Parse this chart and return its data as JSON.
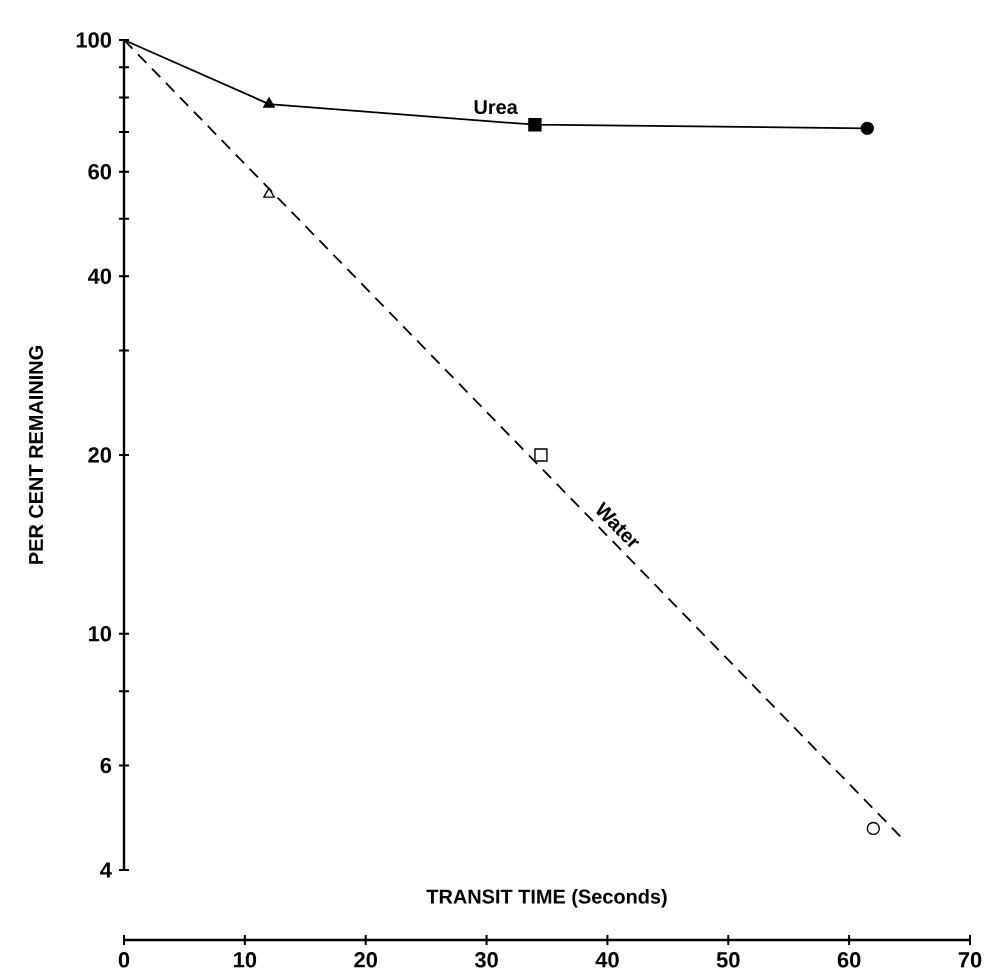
{
  "chart_data": {
    "type": "line",
    "xlabel": "TRANSIT TIME (Seconds)",
    "ylabel": "PER CENT REMAINING",
    "log": "y",
    "xlim": [
      0,
      70
    ],
    "xticks": [
      0,
      10,
      20,
      30,
      40,
      50,
      60,
      70
    ],
    "ylim": [
      4,
      100
    ],
    "yticks": [
      4,
      6,
      {
        "value": 8,
        "label": null
      },
      10,
      20,
      {
        "value": 30,
        "label": null
      },
      40,
      {
        "value": 50,
        "label": null
      },
      60,
      {
        "value": 70,
        "label": null
      },
      {
        "value": 80,
        "label": null
      },
      {
        "value": 90,
        "label": null
      },
      100
    ],
    "grid": false,
    "series": [
      {
        "name": "Urea",
        "color": "#000000",
        "line_style": "solid",
        "marker": "none",
        "x": [
          0,
          12,
          34,
          61.5
        ],
        "values": [
          100,
          78,
          72,
          71
        ]
      },
      {
        "name": "Water",
        "color": "#000000",
        "line_style": "dashed",
        "marker": "none",
        "x": [
          0,
          64.5
        ],
        "values": [
          100,
          4.5
        ]
      },
      {
        "type": "scatter",
        "color": "#000000",
        "marker": "triangle",
        "x": [
          12
        ],
        "values": [
          78
        ]
      },
      {
        "type": "scatter",
        "color": "#000000",
        "marker": "square",
        "x": [
          34
        ],
        "values": [
          72
        ]
      },
      {
        "type": "scatter",
        "color": "#000000",
        "marker": "circle",
        "x": [
          61.5
        ],
        "values": [
          71
        ]
      },
      {
        "type": "scatter",
        "color": "#ffffff",
        "marker": "triangle",
        "x": [
          12
        ],
        "values": [
          55
        ]
      },
      {
        "type": "scatter",
        "color": "#ffffff",
        "marker": "square",
        "x": [
          34.5
        ],
        "values": [
          20
        ]
      },
      {
        "type": "scatter",
        "color": "#ffffff",
        "marker": "circle",
        "x": [
          62
        ],
        "values": [
          4.7
        ]
      }
    ]
  }
}
